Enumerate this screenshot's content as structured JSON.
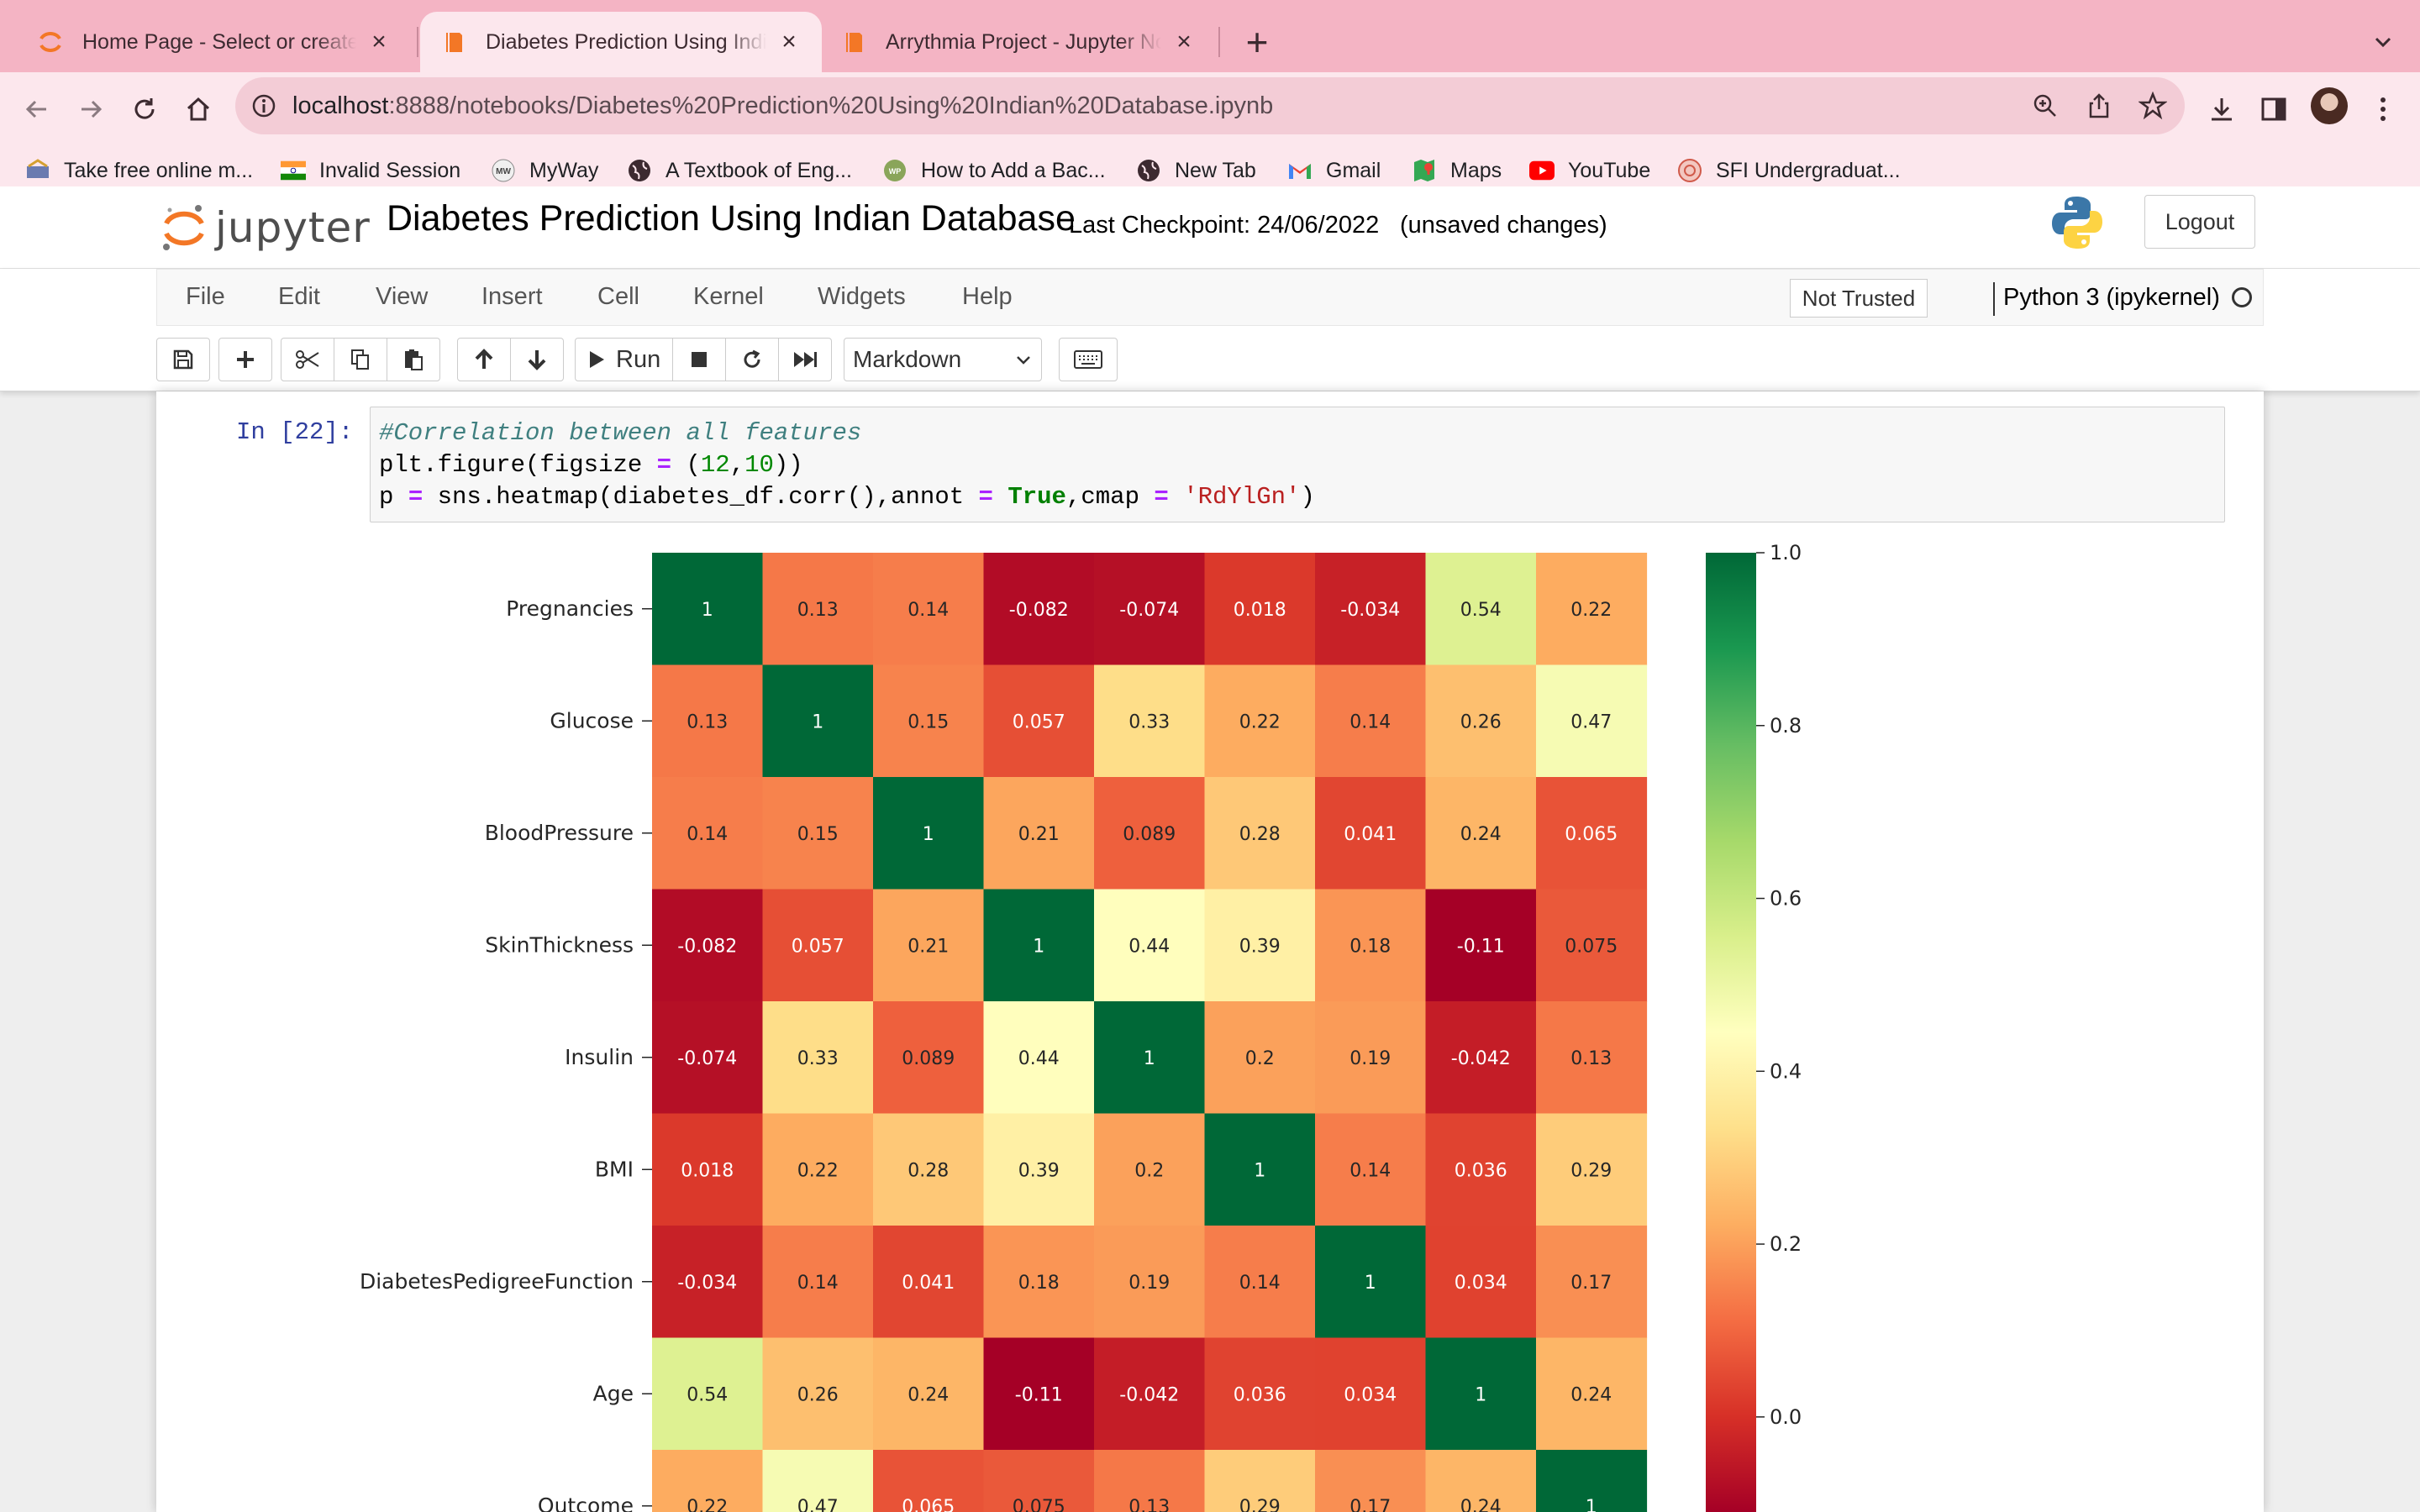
{
  "browser": {
    "tabs": [
      {
        "title": "Home Page - Select or create a notebook",
        "active": false
      },
      {
        "title": "Diabetes Prediction Using Indian Database",
        "active": true
      },
      {
        "title": "Arrythmia Project - Jupyter Notebook",
        "active": false
      }
    ],
    "url_host": "localhost",
    "url_rest": ":8888/notebooks/Diabetes%20Prediction%20Using%20Indian%20Database.ipynb",
    "bookmarks": [
      {
        "label": "Take free online m...",
        "icon": "site-icon"
      },
      {
        "label": "Invalid Session",
        "icon": "india-flag-icon"
      },
      {
        "label": "MyWay",
        "icon": "myway-icon"
      },
      {
        "label": "A Textbook of Eng...",
        "icon": "globe-icon"
      },
      {
        "label": "How to Add a Bac...",
        "icon": "site-icon"
      },
      {
        "label": "New Tab",
        "icon": "globe-icon"
      },
      {
        "label": "Gmail",
        "icon": "gmail-icon"
      },
      {
        "label": "Maps",
        "icon": "maps-icon"
      },
      {
        "label": "YouTube",
        "icon": "youtube-icon"
      },
      {
        "label": "SFI Undergraduat...",
        "icon": "site-icon"
      }
    ]
  },
  "jupyter": {
    "logo_text": "jupyter",
    "title": "Diabetes Prediction Using Indian Database",
    "checkpoint": "Last Checkpoint: 24/06/2022",
    "unsaved": "(unsaved changes)",
    "logout": "Logout",
    "menu": [
      "File",
      "Edit",
      "View",
      "Insert",
      "Cell",
      "Kernel",
      "Widgets",
      "Help"
    ],
    "not_trusted": "Not Trusted",
    "kernel": "Python 3 (ipykernel)",
    "run_label": "Run",
    "cell_type": "Markdown"
  },
  "cell": {
    "prompt": "In [22]:",
    "code": [
      "#Correlation between all features",
      "plt.figure(figsize = (12,10))",
      "p = sns.heatmap(diabetes_df.corr(),annot = True,cmap = 'RdYlGn')"
    ]
  },
  "chart_data": {
    "type": "heatmap",
    "colormap": "RdYlGn",
    "labels": [
      "Pregnancies",
      "Glucose",
      "BloodPressure",
      "SkinThickness",
      "Insulin",
      "BMI",
      "DiabetesPedigreeFunction",
      "Age",
      "Outcome"
    ],
    "cell_labels": [
      [
        "1",
        "0.13",
        "0.14",
        "-0.082",
        "-0.074",
        "0.018",
        "-0.034",
        "0.54",
        "0.22"
      ],
      [
        "0.13",
        "1",
        "0.15",
        "0.057",
        "0.33",
        "0.22",
        "0.14",
        "0.26",
        "0.47"
      ],
      [
        "0.14",
        "0.15",
        "1",
        "0.21",
        "0.089",
        "0.28",
        "0.041",
        "0.24",
        "0.065"
      ],
      [
        "-0.082",
        "0.057",
        "0.21",
        "1",
        "0.44",
        "0.39",
        "0.18",
        "-0.11",
        "0.075"
      ],
      [
        "-0.074",
        "0.33",
        "0.089",
        "0.44",
        "1",
        "0.2",
        "0.19",
        "-0.042",
        "0.13"
      ],
      [
        "0.018",
        "0.22",
        "0.28",
        "0.39",
        "0.2",
        "1",
        "0.14",
        "0.036",
        "0.29"
      ],
      [
        "-0.034",
        "0.14",
        "0.041",
        "0.18",
        "0.19",
        "0.14",
        "1",
        "0.034",
        "0.17"
      ],
      [
        "0.54",
        "0.26",
        "0.24",
        "-0.11",
        "-0.042",
        "0.036",
        "0.034",
        "1",
        "0.24"
      ],
      [
        "0.22",
        "0.47",
        "0.065",
        "0.075",
        "0.13",
        "0.29",
        "0.17",
        "0.24",
        "1"
      ]
    ],
    "colorbar_ticks": [
      "0.0",
      "0.2",
      "0.4",
      "0.6",
      "0.8",
      "1.0"
    ],
    "vmin": -0.11,
    "vmax": 1.0
  }
}
